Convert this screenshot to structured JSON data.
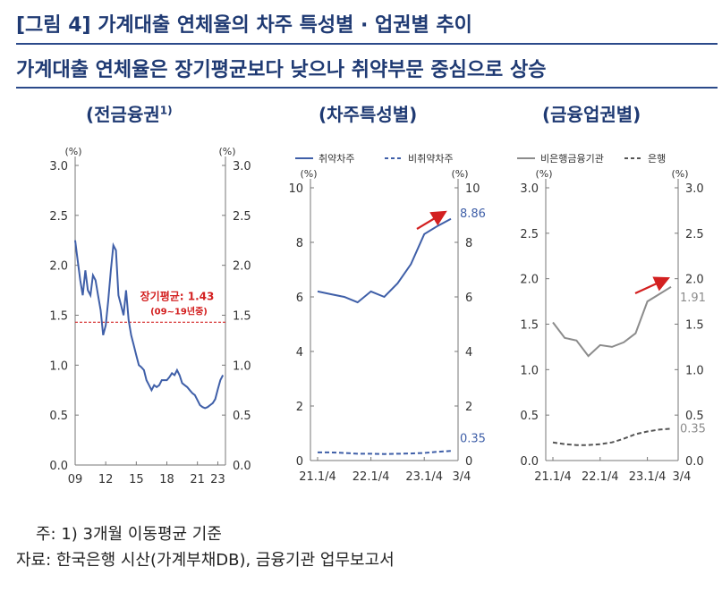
{
  "header": {
    "title": "[그림 4] 가계대출 연체율의 차주 특성별 · 업권별 추이",
    "subtitle": "가계대출 연체율은 장기평균보다 낮으나 취약부문 중심으로 상승"
  },
  "colors": {
    "primary": "#3f5fa8",
    "red": "#d32020",
    "gray": "#8c8c8c",
    "dark": "#555555"
  },
  "chart_data": [
    {
      "type": "line",
      "title": "(전금융권",
      "title_sup": "1)",
      "ylabel_left": "(%)",
      "ylabel_right": "(%)",
      "ylim": [
        0,
        3
      ],
      "yticks": [
        "0.0",
        "0.5",
        "1.0",
        "1.5",
        "2.0",
        "2.5",
        "3.0"
      ],
      "xlim": [
        2009,
        2023.75
      ],
      "xticks": [
        2009,
        2012,
        2015,
        2018,
        2021,
        2023
      ],
      "xtick_labels": [
        "09",
        "12",
        "15",
        "18",
        "21",
        "23"
      ],
      "series": [
        {
          "x": [
            2009.0,
            2009.25,
            2009.5,
            2009.75,
            2010.0,
            2010.25,
            2010.5,
            2010.75,
            2011.0,
            2011.25,
            2011.5,
            2011.75,
            2012.0,
            2012.25,
            2012.5,
            2012.75,
            2013.0,
            2013.25,
            2013.5,
            2013.75,
            2014.0,
            2014.25,
            2014.5,
            2014.75,
            2015.0,
            2015.25,
            2015.5,
            2015.75,
            2016.0,
            2016.25,
            2016.5,
            2016.75,
            2017.0,
            2017.25,
            2017.5,
            2017.75,
            2018.0,
            2018.25,
            2018.5,
            2018.75,
            2019.0,
            2019.25,
            2019.5,
            2019.75,
            2020.0,
            2020.25,
            2020.5,
            2020.75,
            2021.0,
            2021.25,
            2021.5,
            2021.75,
            2022.0,
            2022.25,
            2022.5,
            2022.75,
            2023.0,
            2023.25,
            2023.5
          ],
          "values": [
            2.25,
            2.05,
            1.85,
            1.7,
            1.95,
            1.75,
            1.7,
            1.9,
            1.85,
            1.7,
            1.55,
            1.3,
            1.4,
            1.65,
            1.95,
            2.2,
            2.15,
            1.7,
            1.6,
            1.5,
            1.75,
            1.45,
            1.3,
            1.2,
            1.1,
            1.0,
            0.98,
            0.95,
            0.85,
            0.8,
            0.75,
            0.8,
            0.78,
            0.8,
            0.85,
            0.85,
            0.85,
            0.88,
            0.92,
            0.9,
            0.95,
            0.9,
            0.82,
            0.8,
            0.78,
            0.75,
            0.72,
            0.7,
            0.65,
            0.6,
            0.58,
            0.57,
            0.58,
            0.6,
            0.62,
            0.66,
            0.76,
            0.85,
            0.9
          ]
        }
      ],
      "reference_line": {
        "value": 1.43,
        "label": "장기평균: 1.43",
        "sublabel": "(09~19년중)"
      }
    },
    {
      "type": "line",
      "title": "(차주특성별)",
      "ylabel_left": "(%)",
      "ylabel_right": "(%)",
      "ylim": [
        0,
        10
      ],
      "yticks": [
        "0",
        "2",
        "4",
        "6",
        "8",
        "10"
      ],
      "xticks": [
        "21.1/4",
        "22.1/4",
        "23.1/4",
        "3/4"
      ],
      "x": [
        "21.1/4",
        "21.2/4",
        "21.3/4",
        "21.4/4",
        "22.1/4",
        "22.2/4",
        "22.3/4",
        "22.4/4",
        "23.1/4",
        "23.2/4",
        "23.3/4"
      ],
      "series": [
        {
          "name": "취약차주",
          "style": "solid",
          "values": [
            6.2,
            6.1,
            6.0,
            5.8,
            6.2,
            6.0,
            6.5,
            7.2,
            8.3,
            8.6,
            8.86
          ],
          "end_label": "8.86"
        },
        {
          "name": "비취약차주",
          "style": "dashed",
          "values": [
            0.3,
            0.3,
            0.28,
            0.25,
            0.25,
            0.24,
            0.25,
            0.26,
            0.28,
            0.32,
            0.35
          ],
          "end_label": "0.35"
        }
      ]
    },
    {
      "type": "line",
      "title": "(금융업권별)",
      "ylabel_left": "(%)",
      "ylabel_right": "(%)",
      "ylim": [
        0,
        3
      ],
      "yticks": [
        "0.0",
        "0.5",
        "1.0",
        "1.5",
        "2.0",
        "2.5",
        "3.0"
      ],
      "xticks": [
        "21.1/4",
        "22.1/4",
        "23.1/4",
        "3/4"
      ],
      "x": [
        "21.1/4",
        "21.2/4",
        "21.3/4",
        "21.4/4",
        "22.1/4",
        "22.2/4",
        "22.3/4",
        "22.4/4",
        "23.1/4",
        "23.2/4",
        "23.3/4"
      ],
      "series": [
        {
          "name": "비은행금융기관",
          "style": "solid",
          "values": [
            1.52,
            1.35,
            1.32,
            1.15,
            1.27,
            1.25,
            1.3,
            1.4,
            1.75,
            1.83,
            1.91
          ],
          "end_label": "1.91"
        },
        {
          "name": "은행",
          "style": "dashed",
          "values": [
            0.2,
            0.18,
            0.17,
            0.17,
            0.18,
            0.2,
            0.24,
            0.29,
            0.32,
            0.34,
            0.35
          ],
          "end_label": "0.35"
        }
      ]
    }
  ],
  "notes": {
    "note": "주: 1) 3개월 이동평균 기준",
    "source": "자료: 한국은행 시산(가계부채DB), 금융기관 업무보고서"
  }
}
